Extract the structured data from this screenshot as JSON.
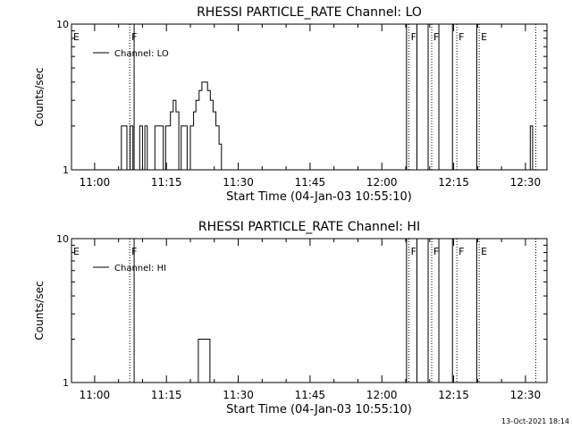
{
  "footer": {
    "timestamp": "13-Oct-2021 18:14"
  },
  "chart_data": [
    {
      "type": "line",
      "title": "RHESSI PARTICLE_RATE Channel: LO",
      "xlabel": "Start Time (04-Jan-03 10:55:10)",
      "ylabel": "Counts/sec",
      "y_scale": "log",
      "ylim": [
        1,
        10
      ],
      "xlim": [
        "10:55:10",
        "12:34:30"
      ],
      "x_ticks": [
        "11:00",
        "11:15",
        "11:30",
        "11:45",
        "12:00",
        "12:15",
        "12:30"
      ],
      "y_ticks": [
        "1",
        "10"
      ],
      "grid": false,
      "legend": {
        "position": "top-left",
        "entries": [
          "Channel: LO"
        ]
      },
      "series": [
        {
          "name": "Channel: LO",
          "points": [
            [
              "11:05:35",
              1
            ],
            [
              "11:05:35",
              2
            ],
            [
              "11:06:45",
              2
            ],
            [
              "11:06:45",
              1
            ],
            [
              "11:07:25",
              1
            ],
            [
              "11:07:25",
              2
            ],
            [
              "11:08:00",
              2
            ],
            [
              "11:08:00",
              1
            ],
            [
              "11:09:25",
              1
            ],
            [
              "11:09:25",
              2
            ],
            [
              "11:10:00",
              2
            ],
            [
              "11:10:00",
              1
            ],
            [
              "11:10:30",
              1
            ],
            [
              "11:10:30",
              2
            ],
            [
              "11:11:00",
              2
            ],
            [
              "11:11:00",
              1
            ],
            [
              "11:12:35",
              1
            ],
            [
              "11:12:35",
              2
            ],
            [
              "11:14:20",
              2
            ],
            [
              "11:14:20",
              1
            ],
            [
              "11:14:50",
              1
            ],
            [
              "11:14:50",
              2
            ],
            [
              "11:15:50",
              2
            ],
            [
              "11:15:50",
              2.5
            ],
            [
              "11:16:25",
              2.5
            ],
            [
              "11:16:25",
              3
            ],
            [
              "11:17:00",
              3
            ],
            [
              "11:17:00",
              2.5
            ],
            [
              "11:17:35",
              2.5
            ],
            [
              "11:17:35",
              1
            ],
            [
              "11:18:05",
              1
            ],
            [
              "11:18:05",
              2
            ],
            [
              "11:19:20",
              2
            ],
            [
              "11:19:20",
              1
            ],
            [
              "11:20:00",
              1
            ],
            [
              "11:20:00",
              2
            ],
            [
              "11:20:40",
              2
            ],
            [
              "11:20:40",
              2.5
            ],
            [
              "11:21:10",
              2.5
            ],
            [
              "11:21:10",
              3
            ],
            [
              "11:21:50",
              3
            ],
            [
              "11:21:50",
              3.5
            ],
            [
              "11:22:25",
              3.5
            ],
            [
              "11:22:25",
              4
            ],
            [
              "11:23:35",
              4
            ],
            [
              "11:23:35",
              3.5
            ],
            [
              "11:24:10",
              3.5
            ],
            [
              "11:24:10",
              3
            ],
            [
              "11:24:45",
              3
            ],
            [
              "11:24:45",
              2.5
            ],
            [
              "11:25:20",
              2.5
            ],
            [
              "11:25:20",
              2
            ],
            [
              "11:26:00",
              2
            ],
            [
              "11:26:00",
              1.5
            ],
            [
              "11:26:30",
              1.5
            ],
            [
              "11:26:30",
              1
            ],
            [
              "12:31:00",
              1
            ],
            [
              "12:31:00",
              2
            ],
            [
              "12:31:30",
              2
            ],
            [
              "12:31:30",
              1
            ]
          ]
        }
      ],
      "annotations": {
        "markers": [
          {
            "label": "E",
            "time": "10:55:10",
            "style": "dotted"
          },
          {
            "label": "F",
            "time": "11:07:20",
            "style": "dotted"
          },
          {
            "label": "F",
            "time": "12:05:40",
            "style": "dotted"
          },
          {
            "label": "F",
            "time": "12:10:25",
            "style": "dotted"
          },
          {
            "label": "F",
            "time": "12:15:40",
            "style": "dotted"
          },
          {
            "label": "E",
            "time": "12:20:20",
            "style": "dotted"
          },
          {
            "label": "",
            "time": "12:32:10",
            "style": "dotted"
          }
        ],
        "solid_lines": [
          "11:08:15",
          "12:05:10",
          "12:07:20",
          "12:09:40",
          "12:11:55",
          "12:14:45",
          "12:19:50"
        ]
      }
    },
    {
      "type": "line",
      "title": "RHESSI PARTICLE_RATE Channel: HI",
      "xlabel": "Start Time (04-Jan-03 10:55:10)",
      "ylabel": "Counts/sec",
      "y_scale": "log",
      "ylim": [
        1,
        10
      ],
      "xlim": [
        "10:55:10",
        "12:34:30"
      ],
      "x_ticks": [
        "11:00",
        "11:15",
        "11:30",
        "11:45",
        "12:00",
        "12:15",
        "12:30"
      ],
      "y_ticks": [
        "1",
        "10"
      ],
      "grid": false,
      "legend": {
        "position": "top-left",
        "entries": [
          "Channel: HI"
        ]
      },
      "series": [
        {
          "name": "Channel: HI",
          "points": [
            [
              "11:21:40",
              1
            ],
            [
              "11:21:40",
              2
            ],
            [
              "11:24:05",
              2
            ],
            [
              "11:24:05",
              1
            ]
          ]
        }
      ],
      "annotations": {
        "markers": [
          {
            "label": "E",
            "time": "10:55:10",
            "style": "dotted"
          },
          {
            "label": "F",
            "time": "11:07:20",
            "style": "dotted"
          },
          {
            "label": "F",
            "time": "12:05:40",
            "style": "dotted"
          },
          {
            "label": "F",
            "time": "12:10:25",
            "style": "dotted"
          },
          {
            "label": "F",
            "time": "12:15:40",
            "style": "dotted"
          },
          {
            "label": "E",
            "time": "12:20:20",
            "style": "dotted"
          },
          {
            "label": "",
            "time": "12:32:10",
            "style": "dotted"
          }
        ],
        "solid_lines": [
          "11:08:15",
          "12:05:10",
          "12:07:20",
          "12:09:40",
          "12:11:55",
          "12:14:45",
          "12:19:50"
        ]
      }
    }
  ]
}
